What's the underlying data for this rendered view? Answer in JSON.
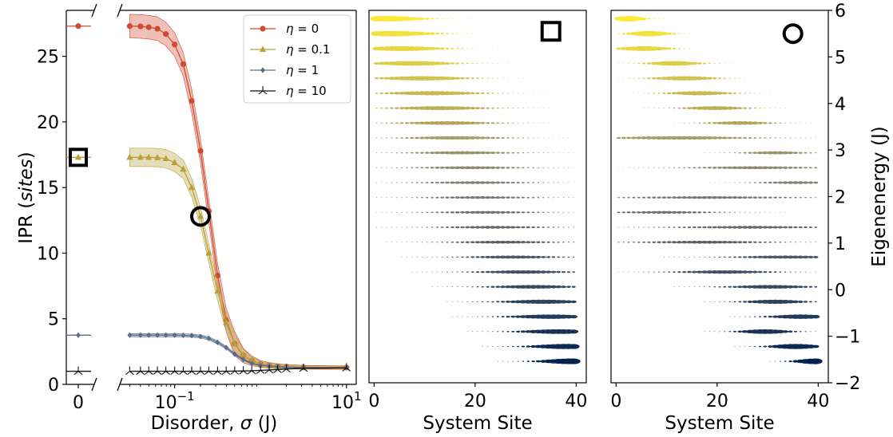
{
  "chart_data": [
    {
      "type": "line",
      "panel": "left",
      "ylabel_prefix": "IPR (",
      "ylabel_italic": "sites",
      "ylabel_suffix": ")",
      "xlabel_prefix": "Disorder, ",
      "xlabel_symbol": "σ",
      "xlabel_suffix": " (J)",
      "x_scale": "broken: 0 then log",
      "ylim": [
        0,
        28.5
      ],
      "xlim_log": [
        0.023,
        13
      ],
      "yticks": [
        0,
        5,
        10,
        15,
        20,
        25
      ],
      "xticks": [
        {
          "value": 0,
          "label": "0"
        },
        {
          "value": 0.1,
          "label": "10",
          "sup": "−1"
        },
        {
          "value": 10,
          "label": "10",
          "sup": "1"
        }
      ],
      "legend_position": "top-right",
      "series": [
        {
          "name": "η = 0",
          "label_symbol": "η",
          "label_value": " = 0",
          "color": "#d04a32",
          "marker": "circle",
          "y_at_zero": 27.3,
          "points": [
            [
              0.03,
              27.3
            ],
            [
              0.04,
              27.28
            ],
            [
              0.05,
              27.22
            ],
            [
              0.063,
              27.1
            ],
            [
              0.079,
              26.7
            ],
            [
              0.1,
              25.9
            ],
            [
              0.126,
              24.4
            ],
            [
              0.158,
              21.6
            ],
            [
              0.2,
              17.8
            ],
            [
              0.25,
              13.2
            ],
            [
              0.316,
              8.3
            ],
            [
              0.398,
              4.9
            ],
            [
              0.5,
              3.1
            ],
            [
              0.63,
              2.2
            ],
            [
              0.79,
              1.8
            ],
            [
              1.0,
              1.55
            ],
            [
              1.26,
              1.45
            ],
            [
              1.58,
              1.38
            ],
            [
              2.0,
              1.35
            ],
            [
              3.16,
              1.3
            ],
            [
              10.0,
              1.28
            ]
          ],
          "band": 0.9
        },
        {
          "name": "η = 0.1",
          "label_symbol": "η",
          "label_value": " = 0.1",
          "color": "#b8a03a",
          "marker": "triangle",
          "y_at_zero": 17.3,
          "points": [
            [
              0.03,
              17.3
            ],
            [
              0.04,
              17.3
            ],
            [
              0.05,
              17.3
            ],
            [
              0.063,
              17.28
            ],
            [
              0.079,
              17.2
            ],
            [
              0.1,
              16.9
            ],
            [
              0.126,
              16.4
            ],
            [
              0.158,
              15.0
            ],
            [
              0.2,
              12.8
            ],
            [
              0.25,
              10.0
            ],
            [
              0.316,
              7.1
            ],
            [
              0.398,
              4.7
            ],
            [
              0.5,
              3.1
            ],
            [
              0.63,
              2.25
            ],
            [
              0.79,
              1.8
            ],
            [
              1.0,
              1.55
            ],
            [
              1.26,
              1.42
            ],
            [
              1.58,
              1.36
            ],
            [
              2.0,
              1.33
            ],
            [
              3.16,
              1.3
            ],
            [
              10.0,
              1.28
            ]
          ],
          "band": 0.7
        },
        {
          "name": "η = 1",
          "label_symbol": "η",
          "label_value": " = 1",
          "color": "#5a6d8c",
          "marker": "diamond",
          "y_at_zero": 3.75,
          "points": [
            [
              0.03,
              3.75
            ],
            [
              0.04,
              3.75
            ],
            [
              0.05,
              3.75
            ],
            [
              0.063,
              3.75
            ],
            [
              0.079,
              3.75
            ],
            [
              0.1,
              3.75
            ],
            [
              0.126,
              3.74
            ],
            [
              0.158,
              3.72
            ],
            [
              0.2,
              3.65
            ],
            [
              0.25,
              3.5
            ],
            [
              0.316,
              3.2
            ],
            [
              0.398,
              2.8
            ],
            [
              0.5,
              2.3
            ],
            [
              0.63,
              1.9
            ],
            [
              0.79,
              1.6
            ],
            [
              1.0,
              1.45
            ],
            [
              1.26,
              1.38
            ],
            [
              1.58,
              1.33
            ],
            [
              2.0,
              1.3
            ],
            [
              3.16,
              1.28
            ],
            [
              10.0,
              1.27
            ]
          ],
          "band": 0.12
        },
        {
          "name": "η = 10",
          "label_symbol": "η",
          "label_value": " = 10",
          "color": "#111111",
          "marker": "tri",
          "y_at_zero": 1.0,
          "points": [
            [
              0.03,
              1.0
            ],
            [
              0.04,
              1.0
            ],
            [
              0.05,
              1.0
            ],
            [
              0.063,
              1.0
            ],
            [
              0.079,
              1.0
            ],
            [
              0.1,
              1.0
            ],
            [
              0.126,
              1.0
            ],
            [
              0.158,
              1.0
            ],
            [
              0.2,
              1.0
            ],
            [
              0.25,
              1.0
            ],
            [
              0.316,
              1.0
            ],
            [
              0.398,
              1.0
            ],
            [
              0.5,
              1.01
            ],
            [
              0.63,
              1.02
            ],
            [
              0.79,
              1.04
            ],
            [
              1.0,
              1.07
            ],
            [
              1.26,
              1.1
            ],
            [
              1.58,
              1.13
            ],
            [
              2.0,
              1.17
            ],
            [
              3.16,
              1.22
            ],
            [
              10.0,
              1.25
            ]
          ],
          "band": 0.05
        }
      ],
      "annotations": [
        {
          "shape": "square",
          "x": 0,
          "y": 17.3
        },
        {
          "shape": "circle",
          "x": 0.2,
          "y": 12.8
        }
      ]
    },
    {
      "type": "scatter",
      "panel": "middle",
      "xlabel": "System Site",
      "xlim": [
        -1,
        42
      ],
      "xticks": [
        0,
        20,
        40
      ],
      "ylim": [
        -2,
        6
      ],
      "n_sites": 40,
      "levels": [
        {
          "e": 5.82,
          "c": 2,
          "w": 7,
          "a": 1.0
        },
        {
          "e": 5.5,
          "c": 3,
          "w": 8,
          "a": 0.95
        },
        {
          "e": 5.18,
          "c": 5,
          "w": 8,
          "a": 0.85
        },
        {
          "e": 4.86,
          "c": 7,
          "w": 8,
          "a": 0.8
        },
        {
          "e": 4.54,
          "c": 9,
          "w": 8.5,
          "a": 0.75
        },
        {
          "e": 4.22,
          "c": 11,
          "w": 9,
          "a": 0.7
        },
        {
          "e": 3.9,
          "c": 12.5,
          "w": 9,
          "a": 0.65
        },
        {
          "e": 3.58,
          "c": 14,
          "w": 9,
          "a": 0.6
        },
        {
          "e": 3.26,
          "c": 15.5,
          "w": 9.5,
          "a": 0.55
        },
        {
          "e": 2.94,
          "c": 17,
          "w": 9.5,
          "a": 0.5
        },
        {
          "e": 2.62,
          "c": 18.5,
          "w": 10,
          "a": 0.45
        },
        {
          "e": 2.3,
          "c": 19.5,
          "w": 10,
          "a": 0.42
        },
        {
          "e": 1.98,
          "c": 20.5,
          "w": 10,
          "a": 0.4
        },
        {
          "e": 1.66,
          "c": 21.5,
          "w": 10,
          "a": 0.4
        },
        {
          "e": 1.34,
          "c": 23,
          "w": 10,
          "a": 0.42
        },
        {
          "e": 1.02,
          "c": 25,
          "w": 9.5,
          "a": 0.45
        },
        {
          "e": 0.7,
          "c": 27,
          "w": 9,
          "a": 0.5
        },
        {
          "e": 0.38,
          "c": 29,
          "w": 9,
          "a": 0.55
        },
        {
          "e": 0.06,
          "c": 31,
          "w": 8.5,
          "a": 0.6
        },
        {
          "e": -0.26,
          "c": 33,
          "w": 8,
          "a": 0.7
        },
        {
          "e": -0.58,
          "c": 34.5,
          "w": 8,
          "a": 0.75
        },
        {
          "e": -0.9,
          "c": 36,
          "w": 7.5,
          "a": 0.8
        },
        {
          "e": -1.22,
          "c": 37.5,
          "w": 7,
          "a": 0.9
        },
        {
          "e": -1.54,
          "c": 38.5,
          "w": 6,
          "a": 1.0
        }
      ],
      "annotation": {
        "shape": "square",
        "site": 35,
        "e": 5.55
      }
    },
    {
      "type": "scatter",
      "panel": "right",
      "xlabel": "System Site",
      "ylabel": "Eigenenergy (J)",
      "ylabel_position": "right",
      "xlim": [
        -1,
        42
      ],
      "xticks": [
        0,
        20,
        40
      ],
      "ylim": [
        -2,
        6
      ],
      "yticks": [
        -2,
        -1,
        0,
        1,
        2,
        3,
        4,
        5,
        6
      ],
      "n_sites": 40,
      "levels": [
        {
          "e": 5.82,
          "c": 2,
          "w": 3,
          "a": 1.0
        },
        {
          "e": 5.5,
          "c": 6,
          "w": 4,
          "a": 0.95
        },
        {
          "e": 5.18,
          "c": 5,
          "w": 5,
          "a": 0.85
        },
        {
          "e": 4.86,
          "c": 11,
          "w": 5,
          "a": 0.8
        },
        {
          "e": 4.54,
          "c": 13,
          "w": 6,
          "a": 0.75
        },
        {
          "e": 4.22,
          "c": 16,
          "w": 6,
          "a": 0.7
        },
        {
          "e": 3.9,
          "c": 19,
          "w": 6,
          "a": 0.65
        },
        {
          "e": 3.58,
          "c": 24,
          "w": 6,
          "a": 0.6
        },
        {
          "e": 3.26,
          "c": 12,
          "w": 14,
          "a": 0.55
        },
        {
          "e": 2.94,
          "c": 31,
          "w": 6,
          "a": 0.5
        },
        {
          "e": 2.62,
          "c": 27,
          "w": 12,
          "a": 0.45
        },
        {
          "e": 2.3,
          "c": 35,
          "w": 7,
          "a": 0.42
        },
        {
          "e": 1.98,
          "c": 18,
          "w": 16,
          "a": 0.4
        },
        {
          "e": 1.66,
          "c": 9,
          "w": 10,
          "a": 0.4
        },
        {
          "e": 1.34,
          "c": 26,
          "w": 14,
          "a": 0.42
        },
        {
          "e": 1.02,
          "c": 17,
          "w": 12,
          "a": 0.45
        },
        {
          "e": 0.7,
          "c": 33,
          "w": 10,
          "a": 0.5
        },
        {
          "e": 0.38,
          "c": 21,
          "w": 9,
          "a": 0.55
        },
        {
          "e": 0.06,
          "c": 30,
          "w": 8,
          "a": 0.6
        },
        {
          "e": -0.26,
          "c": 31,
          "w": 6,
          "a": 0.7
        },
        {
          "e": -0.58,
          "c": 36,
          "w": 6,
          "a": 0.75
        },
        {
          "e": -0.9,
          "c": 29,
          "w": 5,
          "a": 0.8
        },
        {
          "e": -1.22,
          "c": 35,
          "w": 5,
          "a": 0.9
        },
        {
          "e": -1.54,
          "c": 39,
          "w": 4,
          "a": 1.0
        }
      ],
      "annotation": {
        "shape": "circle",
        "site": 35,
        "e": 5.5
      }
    }
  ]
}
